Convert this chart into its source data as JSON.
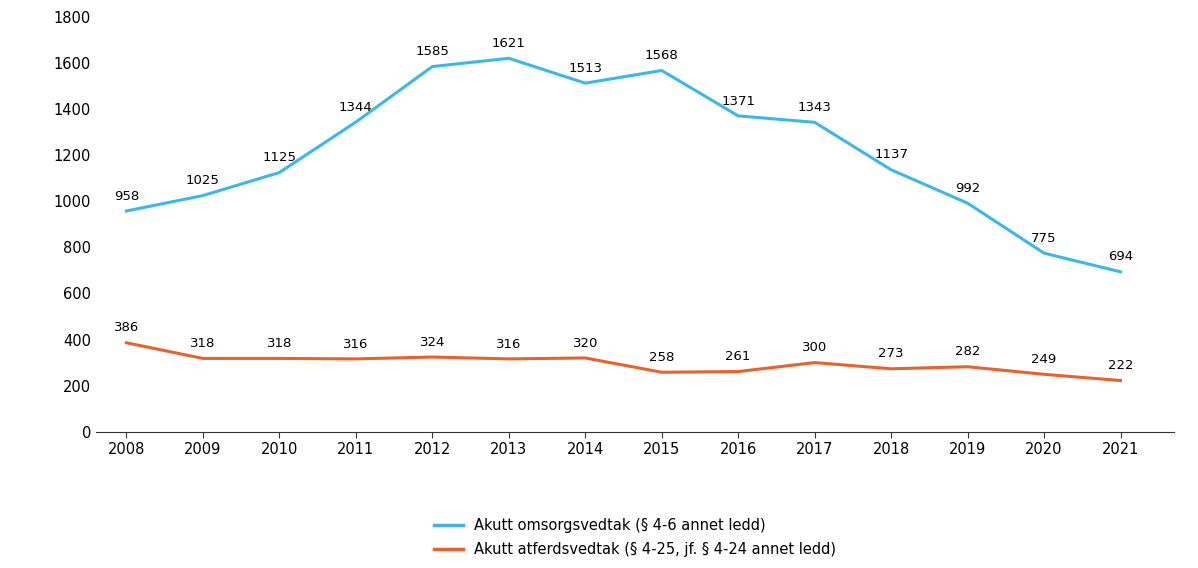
{
  "years": [
    2008,
    2009,
    2010,
    2011,
    2012,
    2013,
    2014,
    2015,
    2016,
    2017,
    2018,
    2019,
    2020,
    2021
  ],
  "blue_values": [
    958,
    1025,
    1125,
    1344,
    1585,
    1621,
    1513,
    1568,
    1371,
    1343,
    1137,
    992,
    775,
    694
  ],
  "red_values": [
    386,
    318,
    318,
    316,
    324,
    316,
    320,
    258,
    261,
    300,
    273,
    282,
    249,
    222
  ],
  "blue_color": "#3BB8E8",
  "red_color": "#E8622A",
  "blue_label": "Akutt omsorgsvedtak (§ 4-6 annet ledd)",
  "red_label": "Akutt atferdsvedtak (§ 4-25, jf. § 4-24 annet ledd)",
  "ylim": [
    0,
    1800
  ],
  "yticks": [
    0,
    200,
    400,
    600,
    800,
    1000,
    1200,
    1400,
    1600,
    1800
  ],
  "background_color": "#ffffff",
  "line_width": 2.2,
  "annotation_fontsize": 9.5,
  "legend_fontsize": 10.5,
  "tick_fontsize": 10.5
}
